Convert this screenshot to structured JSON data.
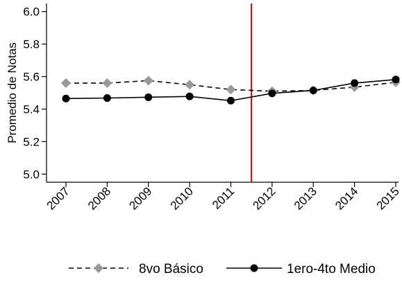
{
  "chart_data": {
    "type": "line",
    "title": "",
    "xlabel": "",
    "ylabel": "Promedio de Notas",
    "x": [
      "2007",
      "2008",
      "2009",
      "2010",
      "2011",
      "2012",
      "2013",
      "2014",
      "2015"
    ],
    "ylim": [
      4.95,
      6.05
    ],
    "yticks": [
      "5.0",
      "5.2",
      "5.4",
      "5.6",
      "5.8",
      "6.0"
    ],
    "grid": false,
    "legend_position": "bottom",
    "reference_line": {
      "x_between": [
        "2011",
        "2012"
      ],
      "color": "#cc0000"
    },
    "series": [
      {
        "name": "8vo Básico",
        "values": [
          5.56,
          5.56,
          5.575,
          5.55,
          5.52,
          5.51,
          5.515,
          5.535,
          5.565
        ],
        "color": "#999999",
        "line_color": "#000000",
        "line_style": "dashed",
        "marker": "diamond"
      },
      {
        "name": "1ero-4to Medio",
        "values": [
          5.465,
          5.468,
          5.473,
          5.478,
          5.452,
          5.497,
          5.515,
          5.56,
          5.582
        ],
        "color": "#000000",
        "line_color": "#000000",
        "line_style": "solid",
        "marker": "circle"
      }
    ]
  }
}
